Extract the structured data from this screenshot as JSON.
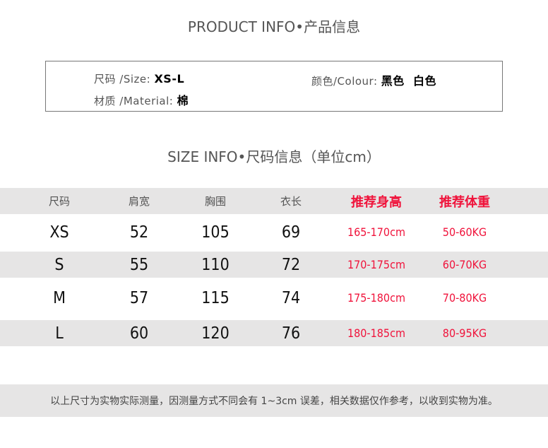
{
  "product_title": "PRODUCT INFO•产品信息",
  "product": {
    "size_label": "尺码 /Size:",
    "size_value": "XS-L",
    "color_label": "颜色/Colour:",
    "color_value": "黑色  白色",
    "material_label": "材质 /Material:",
    "material_value": "棉"
  },
  "size_title": "SIZE INFO•尺码信息（单位cm）",
  "table": {
    "headers": [
      "尺码",
      "肩宽",
      "胸围",
      "衣长",
      "推荐身高",
      "推荐体重"
    ],
    "rows": [
      [
        "XS",
        "52",
        "105",
        "69",
        "165-170cm",
        "50-60KG"
      ],
      [
        "S",
        "55",
        "110",
        "72",
        "170-175cm",
        "60-70KG"
      ],
      [
        "M",
        "57",
        "115",
        "74",
        "175-180cm",
        "70-80KG"
      ],
      [
        "L",
        "60",
        "120",
        "76",
        "180-185cm",
        "80-95KG"
      ]
    ]
  },
  "accent_color": "#f0133b",
  "footer_note": "以上尺寸为实物实际测量，因测量方式不同会有 1~3cm 误差，相关数据仅作参考，以收到实物为准。"
}
